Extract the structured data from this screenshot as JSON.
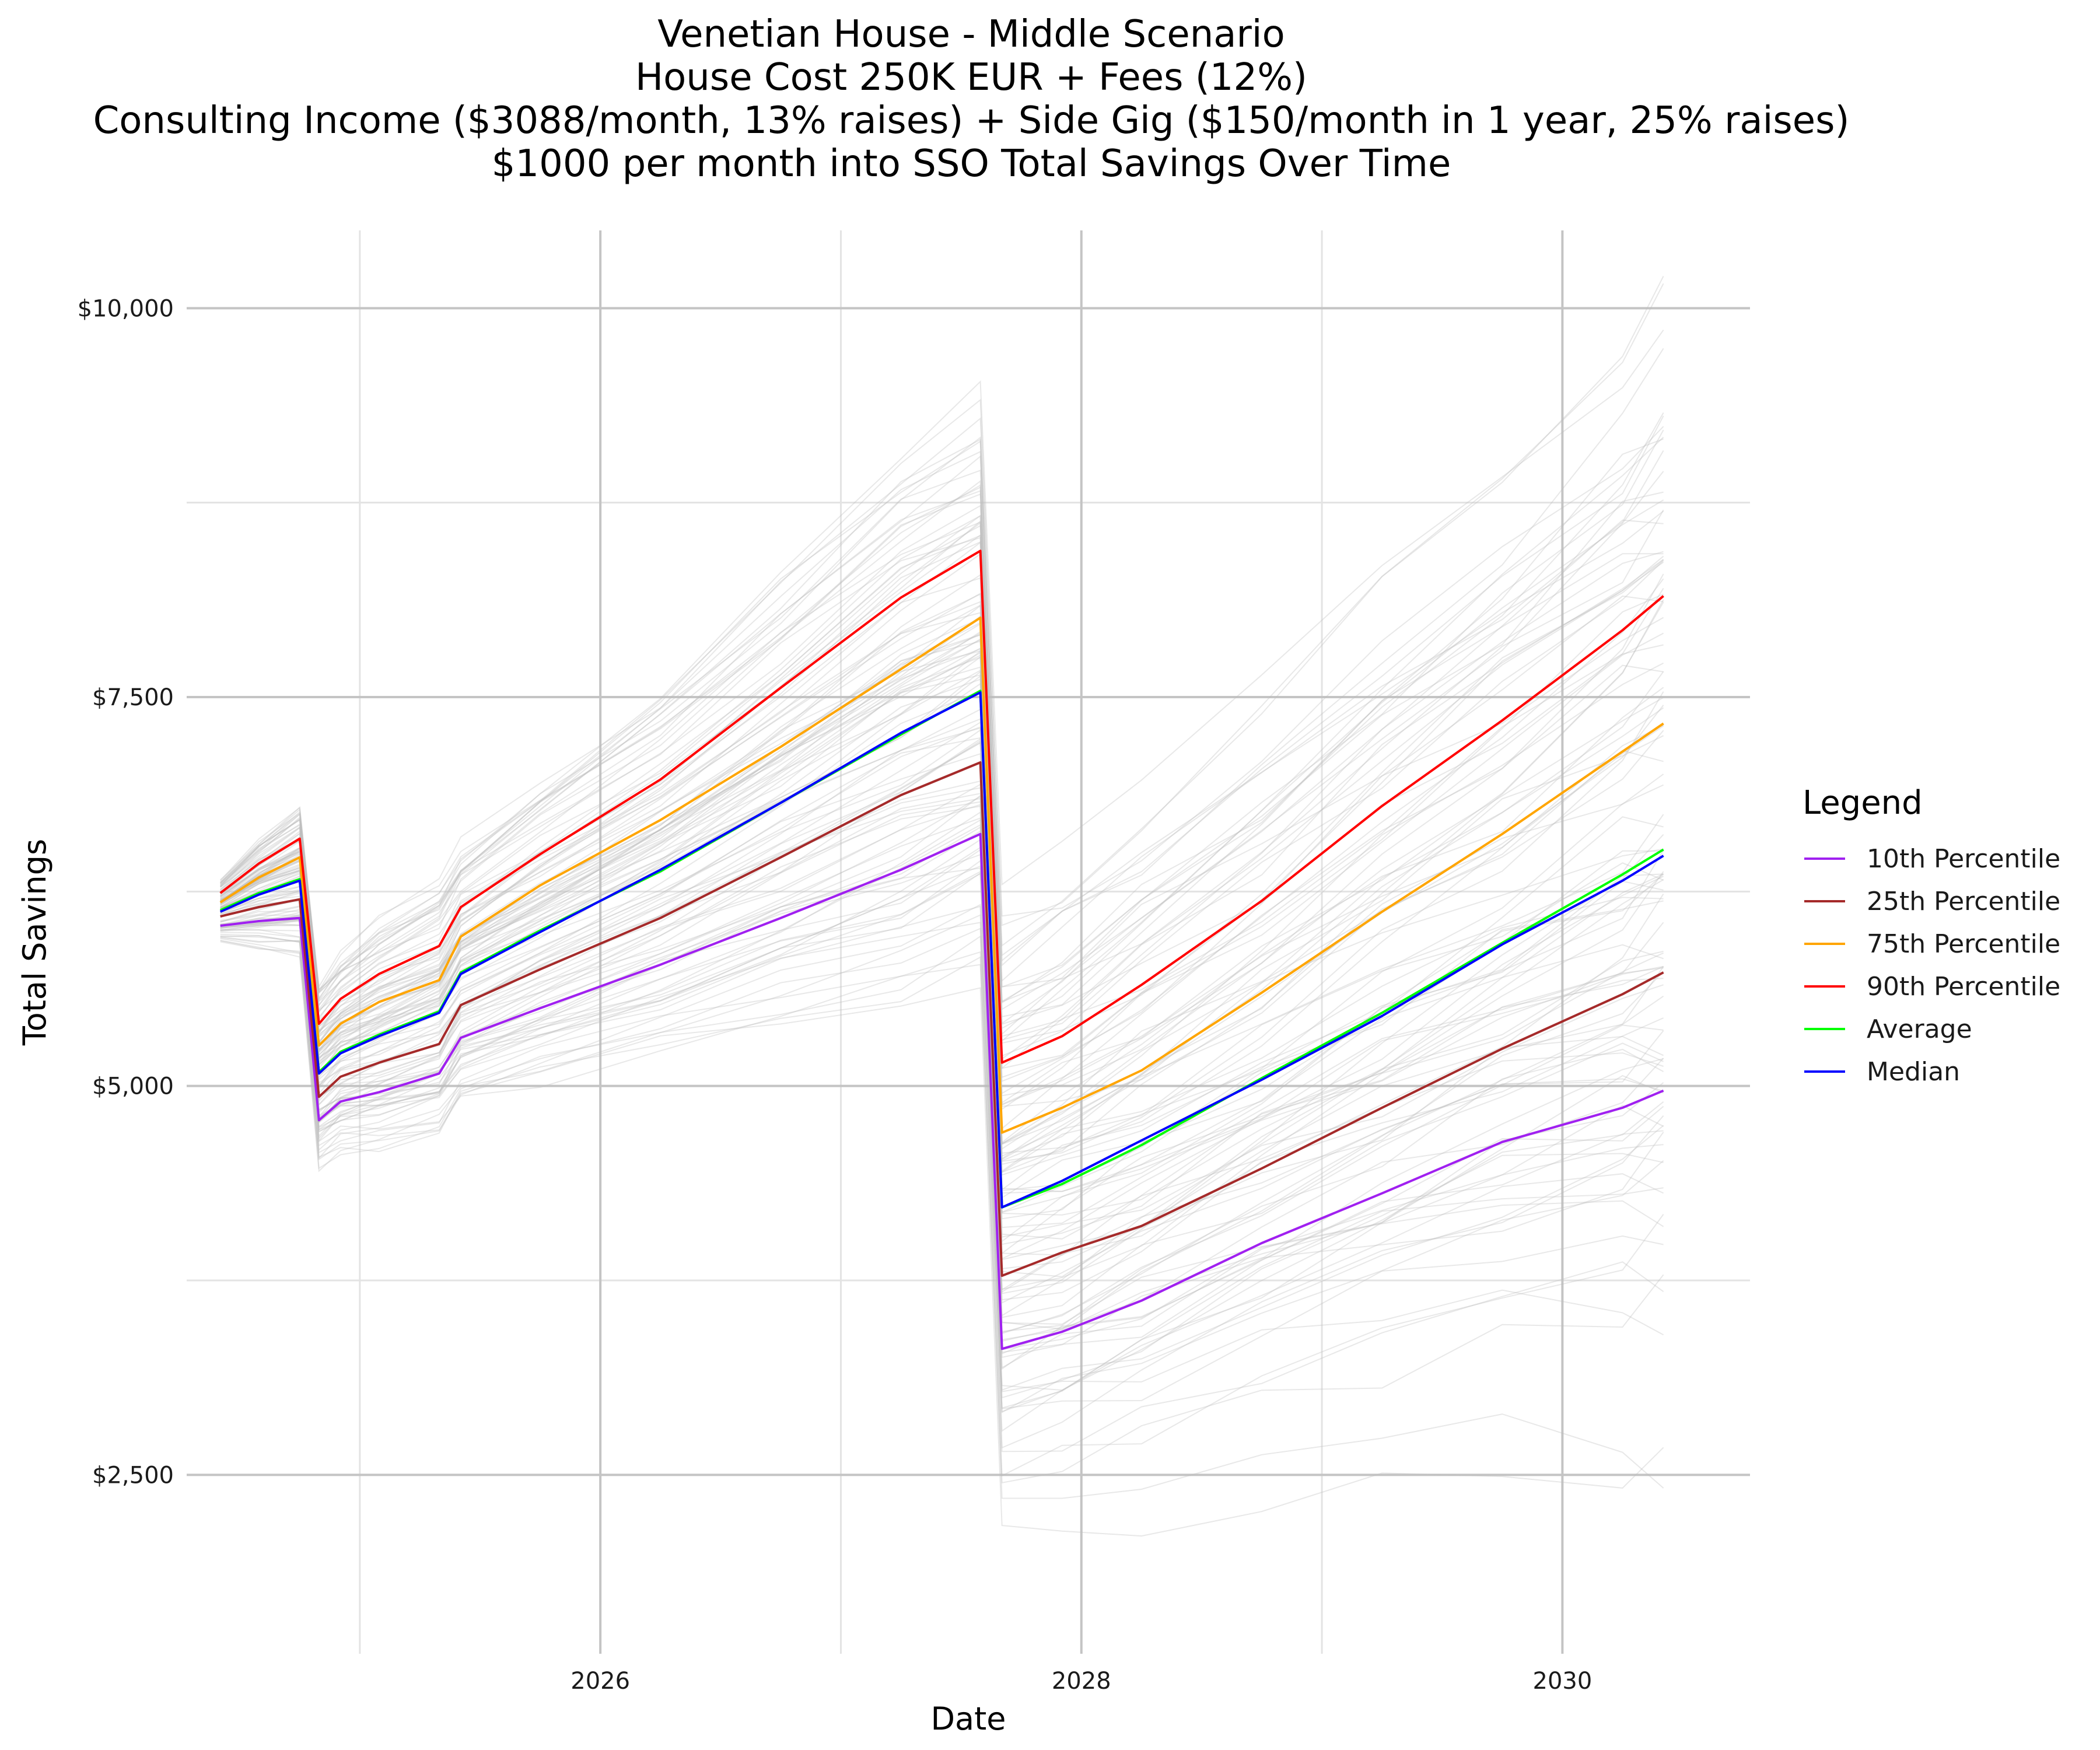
{
  "chart_data": {
    "type": "line",
    "title_lines": [
      "Venetian House - Middle Scenario",
      "House Cost 250K EUR + Fees (12%)",
      "Consulting Income ($3088/month, 13% raises) + Side Gig ($150/month in 1 year, 25% raises)",
      "$1000 per month into SSO Total Savings Over Time"
    ],
    "xlabel": "Date",
    "ylabel": "Total Savings",
    "xlim": [
      2024.28,
      2030.78
    ],
    "ylim": [
      1350,
      10500
    ],
    "x_ticks": [
      {
        "value": 2026,
        "label": "2026"
      },
      {
        "value": 2028,
        "label": "2028"
      },
      {
        "value": 2030,
        "label": "2030"
      }
    ],
    "x_minor_ticks": [
      2025,
      2027,
      2029
    ],
    "y_ticks": [
      {
        "value": 2500,
        "label": "$2,500"
      },
      {
        "value": 5000,
        "label": "$5,000"
      },
      {
        "value": 7500,
        "label": "$7,500"
      },
      {
        "value": 10000,
        "label": "$10,000"
      }
    ],
    "y_minor_ticks": [
      3750,
      6250,
      8750
    ],
    "grid": true,
    "legend": {
      "title": "Legend",
      "placement": "right"
    },
    "simulation_band_color": "#bdbdbd",
    "series": [
      {
        "name": "10th Percentile",
        "color": "#a020f0",
        "x": [
          2024.42,
          2024.58,
          2024.75,
          2024.83,
          2024.92,
          2025.08,
          2025.33,
          2025.42,
          2025.75,
          2026.25,
          2026.75,
          2027.25,
          2027.58,
          2027.67,
          2027.92,
          2028.25,
          2028.75,
          2029.25,
          2029.75,
          2030.25,
          2030.42
        ],
        "y": [
          6030,
          6060,
          6080,
          4780,
          4900,
          4960,
          5080,
          5310,
          5500,
          5780,
          6080,
          6390,
          6620,
          3310,
          3420,
          3620,
          3990,
          4310,
          4640,
          4860,
          4970
        ]
      },
      {
        "name": "25th Percentile",
        "color": "#a52a2a",
        "x": [
          2024.42,
          2024.58,
          2024.75,
          2024.83,
          2024.92,
          2025.08,
          2025.33,
          2025.42,
          2025.75,
          2026.25,
          2026.75,
          2027.25,
          2027.58,
          2027.67,
          2027.92,
          2028.25,
          2028.75,
          2029.25,
          2029.75,
          2030.25,
          2030.42
        ],
        "y": [
          6090,
          6150,
          6200,
          4930,
          5060,
          5150,
          5270,
          5520,
          5750,
          6080,
          6470,
          6870,
          7080,
          3780,
          3930,
          4100,
          4470,
          4860,
          5240,
          5590,
          5730
        ]
      },
      {
        "name": "75th Percentile",
        "color": "#ffa500",
        "x": [
          2024.42,
          2024.58,
          2024.75,
          2024.83,
          2024.92,
          2025.08,
          2025.33,
          2025.42,
          2025.75,
          2026.25,
          2026.75,
          2027.25,
          2027.58,
          2027.67,
          2027.92,
          2028.25,
          2028.75,
          2029.25,
          2029.75,
          2030.25,
          2030.42
        ],
        "y": [
          6180,
          6340,
          6470,
          5260,
          5400,
          5540,
          5680,
          5960,
          6290,
          6710,
          7180,
          7680,
          8010,
          4700,
          4860,
          5100,
          5600,
          6120,
          6620,
          7150,
          7330
        ]
      },
      {
        "name": "90th Percentile",
        "color": "#ff0000",
        "x": [
          2024.42,
          2024.58,
          2024.75,
          2024.83,
          2024.92,
          2025.08,
          2025.33,
          2025.42,
          2025.75,
          2026.25,
          2026.75,
          2027.25,
          2027.58,
          2027.67,
          2027.92,
          2028.25,
          2028.75,
          2029.25,
          2029.75,
          2030.25,
          2030.42
        ],
        "y": [
          6240,
          6430,
          6590,
          5400,
          5560,
          5720,
          5900,
          6150,
          6490,
          6970,
          7560,
          8140,
          8440,
          5150,
          5320,
          5650,
          6190,
          6800,
          7350,
          7930,
          8150
        ]
      },
      {
        "name": "Average",
        "color": "#00ff00",
        "x": [
          2024.42,
          2024.58,
          2024.75,
          2024.83,
          2024.92,
          2025.08,
          2025.33,
          2025.42,
          2025.75,
          2026.25,
          2026.75,
          2027.25,
          2027.58,
          2027.67,
          2027.92,
          2028.25,
          2028.75,
          2029.25,
          2029.75,
          2030.25,
          2030.42
        ],
        "y": [
          6130,
          6240,
          6330,
          5090,
          5220,
          5330,
          5480,
          5730,
          6000,
          6380,
          6820,
          7260,
          7540,
          4220,
          4370,
          4620,
          5050,
          5470,
          5920,
          6360,
          6520
        ]
      },
      {
        "name": "Median",
        "color": "#0000ff",
        "x": [
          2024.42,
          2024.58,
          2024.75,
          2024.83,
          2024.92,
          2025.08,
          2025.33,
          2025.42,
          2025.75,
          2026.25,
          2026.75,
          2027.25,
          2027.58,
          2027.67,
          2027.92,
          2028.25,
          2028.75,
          2029.25,
          2029.75,
          2030.25,
          2030.42
        ],
        "y": [
          6120,
          6230,
          6320,
          5080,
          5210,
          5320,
          5470,
          5720,
          5990,
          6390,
          6820,
          7270,
          7530,
          4220,
          4390,
          4650,
          5040,
          5450,
          5910,
          6320,
          6480
        ]
      }
    ]
  }
}
